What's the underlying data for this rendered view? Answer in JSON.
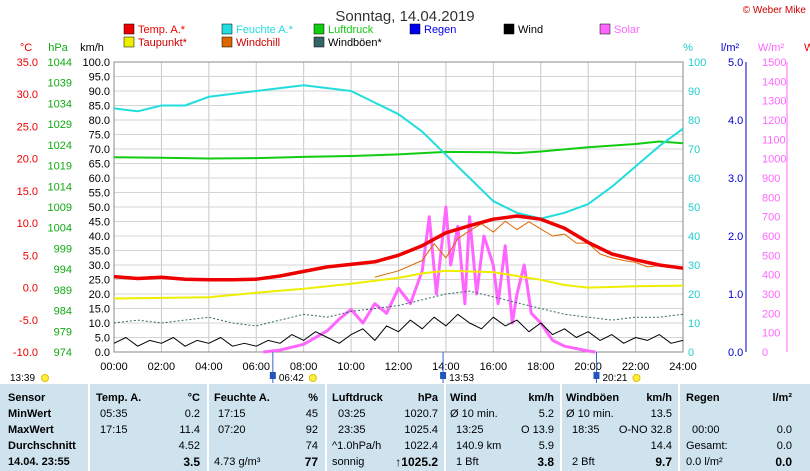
{
  "header": {
    "title": "Sonntag, 14.04.2019",
    "credit": "© Weber Mike"
  },
  "legend": [
    {
      "label": "Temp. A.*",
      "color": "#ee0000"
    },
    {
      "label": "Feuchte A.*",
      "color": "#22dddd"
    },
    {
      "label": "Luftdruck",
      "color": "#11cc11"
    },
    {
      "label": "Regen",
      "color": "#0000ee"
    },
    {
      "label": "Wind",
      "color": "#000000"
    },
    {
      "label": "Solar",
      "color": "#ff66ff"
    },
    {
      "label": "Taupunkt*",
      "color": "#eeee00"
    },
    {
      "label": "Windchill",
      "color": "#dd6600"
    },
    {
      "label": "Windböen*",
      "color": "#336666"
    }
  ],
  "axis_units": {
    "temp": "°C",
    "pressure": "hPa",
    "wind": "km/h",
    "humidity": "%",
    "rain": "l/m²",
    "solar": "W/m²",
    "extra": "W"
  },
  "chart_data": {
    "type": "line",
    "x_ticks": [
      "00:00",
      "02:00",
      "04:00",
      "06:00",
      "08:00",
      "10:00",
      "12:00",
      "14:00",
      "16:00",
      "18:00",
      "20:00",
      "22:00",
      "24:00"
    ],
    "axes": {
      "temp": {
        "range": [
          -10,
          35
        ],
        "ticks": [
          "35.0",
          "30.0",
          "25.0",
          "20.0",
          "15.0",
          "10.0",
          "5.0",
          "0.0",
          "-5.0",
          "-10.0"
        ],
        "color": "#ee0000"
      },
      "pressure": {
        "range": [
          974,
          1044
        ],
        "ticks": [
          "1044",
          "1039",
          "1034",
          "1029",
          "1024",
          "1019",
          "1014",
          "1009",
          "1004",
          "999",
          "994",
          "989",
          "984",
          "979",
          "974"
        ],
        "color": "#11aa11"
      },
      "wind": {
        "range": [
          0,
          100
        ],
        "ticks": [
          "100.0",
          "95.0",
          "90.0",
          "85.0",
          "80.0",
          "75.0",
          "70.0",
          "65.0",
          "60.0",
          "55.0",
          "50.0",
          "45.0",
          "40.0",
          "35.0",
          "30.0",
          "25.0",
          "20.0",
          "15.0",
          "10.0",
          "5.0",
          "0.0"
        ],
        "color": "#000000"
      },
      "humidity": {
        "range": [
          0,
          100
        ],
        "ticks": [
          "100",
          "90",
          "80",
          "70",
          "60",
          "50",
          "40",
          "30",
          "20",
          "10",
          "0"
        ],
        "color": "#22cccc"
      },
      "rain": {
        "range": [
          0,
          5
        ],
        "ticks": [
          "5.0",
          "4.0",
          "3.0",
          "2.0",
          "1.0",
          "0.0"
        ],
        "color": "#0000cc"
      },
      "solar": {
        "range": [
          0,
          1500
        ],
        "ticks": [
          "1500",
          "1400",
          "1300",
          "1200",
          "1100",
          "1000",
          "900",
          "800",
          "700",
          "600",
          "500",
          "400",
          "300",
          "200",
          "100",
          "0"
        ],
        "color": "#ff66ff"
      }
    },
    "series": [
      {
        "name": "Temp. A.*",
        "axis": "temp",
        "color": "#ee0000",
        "width": 3.5,
        "points": [
          [
            0,
            1.7
          ],
          [
            1,
            1.4
          ],
          [
            2,
            1.6
          ],
          [
            3,
            1.3
          ],
          [
            4,
            1.2
          ],
          [
            5,
            1.2
          ],
          [
            6,
            1.3
          ],
          [
            7,
            1.8
          ],
          [
            8,
            2.5
          ],
          [
            9,
            3.2
          ],
          [
            10,
            3.6
          ],
          [
            11,
            4.0
          ],
          [
            12,
            5.0
          ],
          [
            13,
            6.5
          ],
          [
            14,
            8.5
          ],
          [
            15,
            9.6
          ],
          [
            16,
            10.6
          ],
          [
            17,
            11.1
          ],
          [
            18,
            10.6
          ],
          [
            19,
            9.2
          ],
          [
            20,
            7.0
          ],
          [
            21,
            5.2
          ],
          [
            22,
            4.3
          ],
          [
            23,
            3.5
          ],
          [
            24,
            3.0
          ]
        ]
      },
      {
        "name": "Feuchte A.*",
        "axis": "humidity",
        "color": "#22dddd",
        "width": 2,
        "points": [
          [
            0,
            84
          ],
          [
            1,
            83
          ],
          [
            2,
            85
          ],
          [
            3,
            85
          ],
          [
            4,
            88
          ],
          [
            5,
            89
          ],
          [
            6,
            90
          ],
          [
            7,
            91
          ],
          [
            8,
            92
          ],
          [
            9,
            91
          ],
          [
            10,
            90
          ],
          [
            11,
            86
          ],
          [
            12,
            82
          ],
          [
            13,
            76
          ],
          [
            14,
            68
          ],
          [
            15,
            60
          ],
          [
            16,
            52
          ],
          [
            17,
            48
          ],
          [
            18,
            46
          ],
          [
            19,
            48
          ],
          [
            20,
            51
          ],
          [
            21,
            57
          ],
          [
            22,
            64
          ],
          [
            23,
            71
          ],
          [
            24,
            77
          ]
        ]
      },
      {
        "name": "Luftdruck",
        "axis": "pressure",
        "color": "#11cc11",
        "width": 2,
        "points": [
          [
            0,
            1021.0
          ],
          [
            2,
            1020.9
          ],
          [
            4,
            1020.7
          ],
          [
            6,
            1020.8
          ],
          [
            8,
            1021.1
          ],
          [
            10,
            1021.3
          ],
          [
            12,
            1021.7
          ],
          [
            14,
            1022.3
          ],
          [
            16,
            1022.2
          ],
          [
            17,
            1022.0
          ],
          [
            18,
            1022.4
          ],
          [
            20,
            1023.4
          ],
          [
            22,
            1024.2
          ],
          [
            23,
            1024.8
          ],
          [
            24,
            1024.4
          ]
        ]
      },
      {
        "name": "Taupunkt*",
        "axis": "temp",
        "color": "#eeee00",
        "width": 2,
        "points": [
          [
            0,
            -1.7
          ],
          [
            2,
            -1.6
          ],
          [
            4,
            -1.5
          ],
          [
            6,
            -0.8
          ],
          [
            8,
            -0.2
          ],
          [
            10,
            0.6
          ],
          [
            12,
            1.5
          ],
          [
            13,
            2.2
          ],
          [
            14,
            2.6
          ],
          [
            16,
            2.4
          ],
          [
            18,
            1.2
          ],
          [
            19,
            0.4
          ],
          [
            20,
            0.0
          ],
          [
            22,
            0.2
          ],
          [
            24,
            0.3
          ]
        ]
      },
      {
        "name": "Windchill",
        "axis": "temp",
        "color": "#dd6600",
        "width": 1,
        "points": [
          [
            11,
            1.6
          ],
          [
            12,
            2.6
          ],
          [
            13,
            4.2
          ],
          [
            13.5,
            6.8
          ],
          [
            14,
            4.6
          ],
          [
            14.5,
            7.6
          ],
          [
            15,
            8.8
          ],
          [
            15.5,
            9.9
          ],
          [
            16,
            8.6
          ],
          [
            16.5,
            10.3
          ],
          [
            17,
            9.0
          ],
          [
            17.5,
            10.2
          ],
          [
            18,
            9.1
          ],
          [
            18.5,
            8.0
          ],
          [
            19,
            8.3
          ],
          [
            19.5,
            6.9
          ],
          [
            20,
            6.9
          ],
          [
            20.5,
            5.2
          ],
          [
            21,
            4.6
          ],
          [
            21.5,
            4.2
          ],
          [
            22,
            3.9
          ],
          [
            22.5,
            3.2
          ],
          [
            23,
            3.4
          ],
          [
            24,
            2.9
          ]
        ]
      },
      {
        "name": "Windböen*",
        "axis": "wind",
        "color": "#336666",
        "width": 1,
        "dashed": true,
        "points": [
          [
            0,
            10
          ],
          [
            1,
            11
          ],
          [
            2,
            10
          ],
          [
            3,
            11
          ],
          [
            4,
            12
          ],
          [
            5,
            10
          ],
          [
            6,
            9
          ],
          [
            7,
            11
          ],
          [
            8,
            13
          ],
          [
            9,
            12
          ],
          [
            10,
            14
          ],
          [
            11,
            15
          ],
          [
            12,
            16
          ],
          [
            13,
            18
          ],
          [
            14,
            20
          ],
          [
            15,
            21
          ],
          [
            16,
            19
          ],
          [
            17,
            17
          ],
          [
            18,
            15
          ],
          [
            19,
            13
          ],
          [
            20,
            12
          ],
          [
            21,
            11
          ],
          [
            22,
            12
          ],
          [
            23,
            12
          ],
          [
            24,
            13
          ]
        ]
      },
      {
        "name": "Wind",
        "axis": "wind",
        "color": "#000000",
        "width": 1,
        "points": [
          [
            0,
            3
          ],
          [
            0.5,
            5
          ],
          [
            1,
            2
          ],
          [
            1.5,
            4
          ],
          [
            2,
            3
          ],
          [
            2.5,
            5
          ],
          [
            3,
            2
          ],
          [
            3.5,
            4
          ],
          [
            4,
            3
          ],
          [
            4.5,
            5
          ],
          [
            5,
            2
          ],
          [
            5.5,
            3
          ],
          [
            6,
            2
          ],
          [
            6.5,
            4
          ],
          [
            7,
            3
          ],
          [
            7.5,
            6
          ],
          [
            8,
            4
          ],
          [
            8.5,
            7
          ],
          [
            9,
            5
          ],
          [
            9.5,
            3
          ],
          [
            10,
            6
          ],
          [
            10.5,
            8
          ],
          [
            11,
            4
          ],
          [
            11.5,
            9
          ],
          [
            12,
            7
          ],
          [
            12.5,
            11
          ],
          [
            13,
            8
          ],
          [
            13.5,
            12
          ],
          [
            14,
            9
          ],
          [
            14.5,
            13
          ],
          [
            15,
            10
          ],
          [
            15.5,
            8
          ],
          [
            16,
            12
          ],
          [
            16.5,
            9
          ],
          [
            17,
            11
          ],
          [
            17.5,
            7
          ],
          [
            18,
            10
          ],
          [
            18.5,
            6
          ],
          [
            19,
            8
          ],
          [
            19.5,
            5
          ],
          [
            20,
            7
          ],
          [
            20.5,
            4
          ],
          [
            21,
            6
          ],
          [
            21.5,
            3
          ],
          [
            22,
            5
          ],
          [
            22.5,
            4
          ],
          [
            23,
            6
          ],
          [
            23.5,
            3
          ],
          [
            24,
            4
          ]
        ]
      },
      {
        "name": "Solar",
        "axis": "solar",
        "color": "#ff66ff",
        "width": 3,
        "points": [
          [
            6.3,
            0
          ],
          [
            7,
            10
          ],
          [
            8,
            40
          ],
          [
            9,
            110
          ],
          [
            9.5,
            170
          ],
          [
            10,
            220
          ],
          [
            10.5,
            150
          ],
          [
            11,
            250
          ],
          [
            11.5,
            200
          ],
          [
            12,
            330
          ],
          [
            12.5,
            250
          ],
          [
            13,
            420
          ],
          [
            13.3,
            700
          ],
          [
            13.6,
            300
          ],
          [
            14,
            750
          ],
          [
            14.2,
            450
          ],
          [
            14.5,
            650
          ],
          [
            14.8,
            250
          ],
          [
            15,
            700
          ],
          [
            15.3,
            300
          ],
          [
            15.6,
            600
          ],
          [
            16,
            450
          ],
          [
            16.2,
            250
          ],
          [
            16.5,
            550
          ],
          [
            16.8,
            150
          ],
          [
            17,
            300
          ],
          [
            17.3,
            450
          ],
          [
            17.6,
            200
          ],
          [
            18,
            150
          ],
          [
            18.5,
            60
          ],
          [
            19,
            30
          ],
          [
            20,
            5
          ],
          [
            20.3,
            0
          ]
        ]
      }
    ],
    "sun_times": [
      {
        "label": "06:42",
        "x": 6.7
      },
      {
        "label": "13:53",
        "x": 13.88
      },
      {
        "label": "20:21",
        "x": 20.35
      }
    ]
  },
  "markers": {
    "left": "13:39",
    "sunrise": "06:42",
    "noon": "13:53",
    "sunset": "20:21"
  },
  "stats": {
    "rows": [
      "Sensor",
      "MinWert",
      "MaxWert",
      "Durchschnitt",
      "14.04. 23:55"
    ],
    "temp": {
      "header": "Temp. A.",
      "unit": "°C",
      "min_time": "05:35",
      "min": "0.2",
      "max_time": "17:15",
      "max": "11.4",
      "avg": "4.52",
      "current": "3.5"
    },
    "humidity": {
      "header": "Feuchte A.",
      "unit": "%",
      "min_time": "17:15",
      "min": "45",
      "max_time": "07:20",
      "max": "92",
      "avg": "74",
      "abs": "4.73 g/m³",
      "current": "77"
    },
    "pressure": {
      "header": "Luftdruck",
      "unit": "hPa",
      "min_time": "03:25",
      "min": "1020.7",
      "max_time": "23:35",
      "max": "1025.4",
      "trend_label": "^1.0hPa/h",
      "avg": "1022.4",
      "weather": "sonnig",
      "current": "↑1025.2"
    },
    "wind": {
      "header": "Wind",
      "unit": "km/h",
      "row1_label": "Ø 10 min.",
      "row1": "5.2",
      "row2_time": "13:25",
      "row2_dir": "O 13.9",
      "row3_label": "140.9 km",
      "row3": "5.9",
      "row4_label": "1 Bft",
      "current": "3.8"
    },
    "gust": {
      "header": "Windböen",
      "unit": "km/h",
      "row1_label": "Ø 10 min.",
      "row1": "13.5",
      "row2_time": "18:35",
      "row2_dir": "O-NO 32.8",
      "row3": "14.4",
      "row4_label": "2 Bft",
      "current": "9.7"
    },
    "rain": {
      "header": "Regen",
      "unit": "l/m²",
      "row2_time": "00:00",
      "row2": "0.0",
      "row3_label": "Gesamt:",
      "row3": "0.0",
      "row4_label": "0.0 l/m²",
      "current": "0.0"
    }
  }
}
